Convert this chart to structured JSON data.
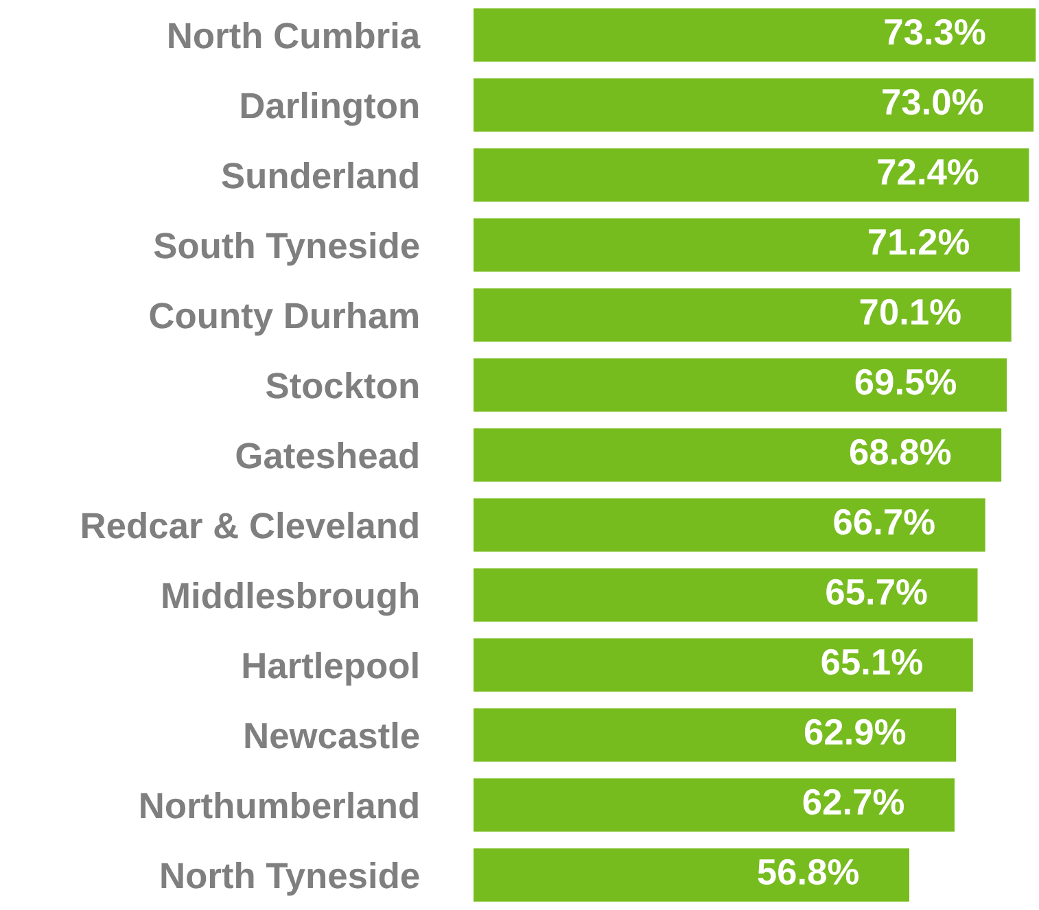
{
  "chart_data": {
    "type": "bar",
    "orientation": "horizontal",
    "categories": [
      "North Cumbria",
      "Darlington",
      "Sunderland",
      "South Tyneside",
      "County Durham",
      "Stockton",
      "Gateshead",
      "Redcar & Cleveland",
      "Middlesbrough",
      "Hartlepool",
      "Newcastle",
      "Northumberland",
      "North Tyneside"
    ],
    "values": [
      73.3,
      73.0,
      72.4,
      71.2,
      70.1,
      69.5,
      68.8,
      66.7,
      65.7,
      65.1,
      62.9,
      62.7,
      56.8
    ],
    "value_labels": [
      "73.3%",
      "73.0%",
      "72.4%",
      "71.2%",
      "70.1%",
      "69.5%",
      "68.8%",
      "66.7%",
      "65.7%",
      "65.1%",
      "62.9%",
      "62.7%",
      "56.8%"
    ],
    "color": "#77bc1f",
    "grid": false,
    "legend": false
  }
}
